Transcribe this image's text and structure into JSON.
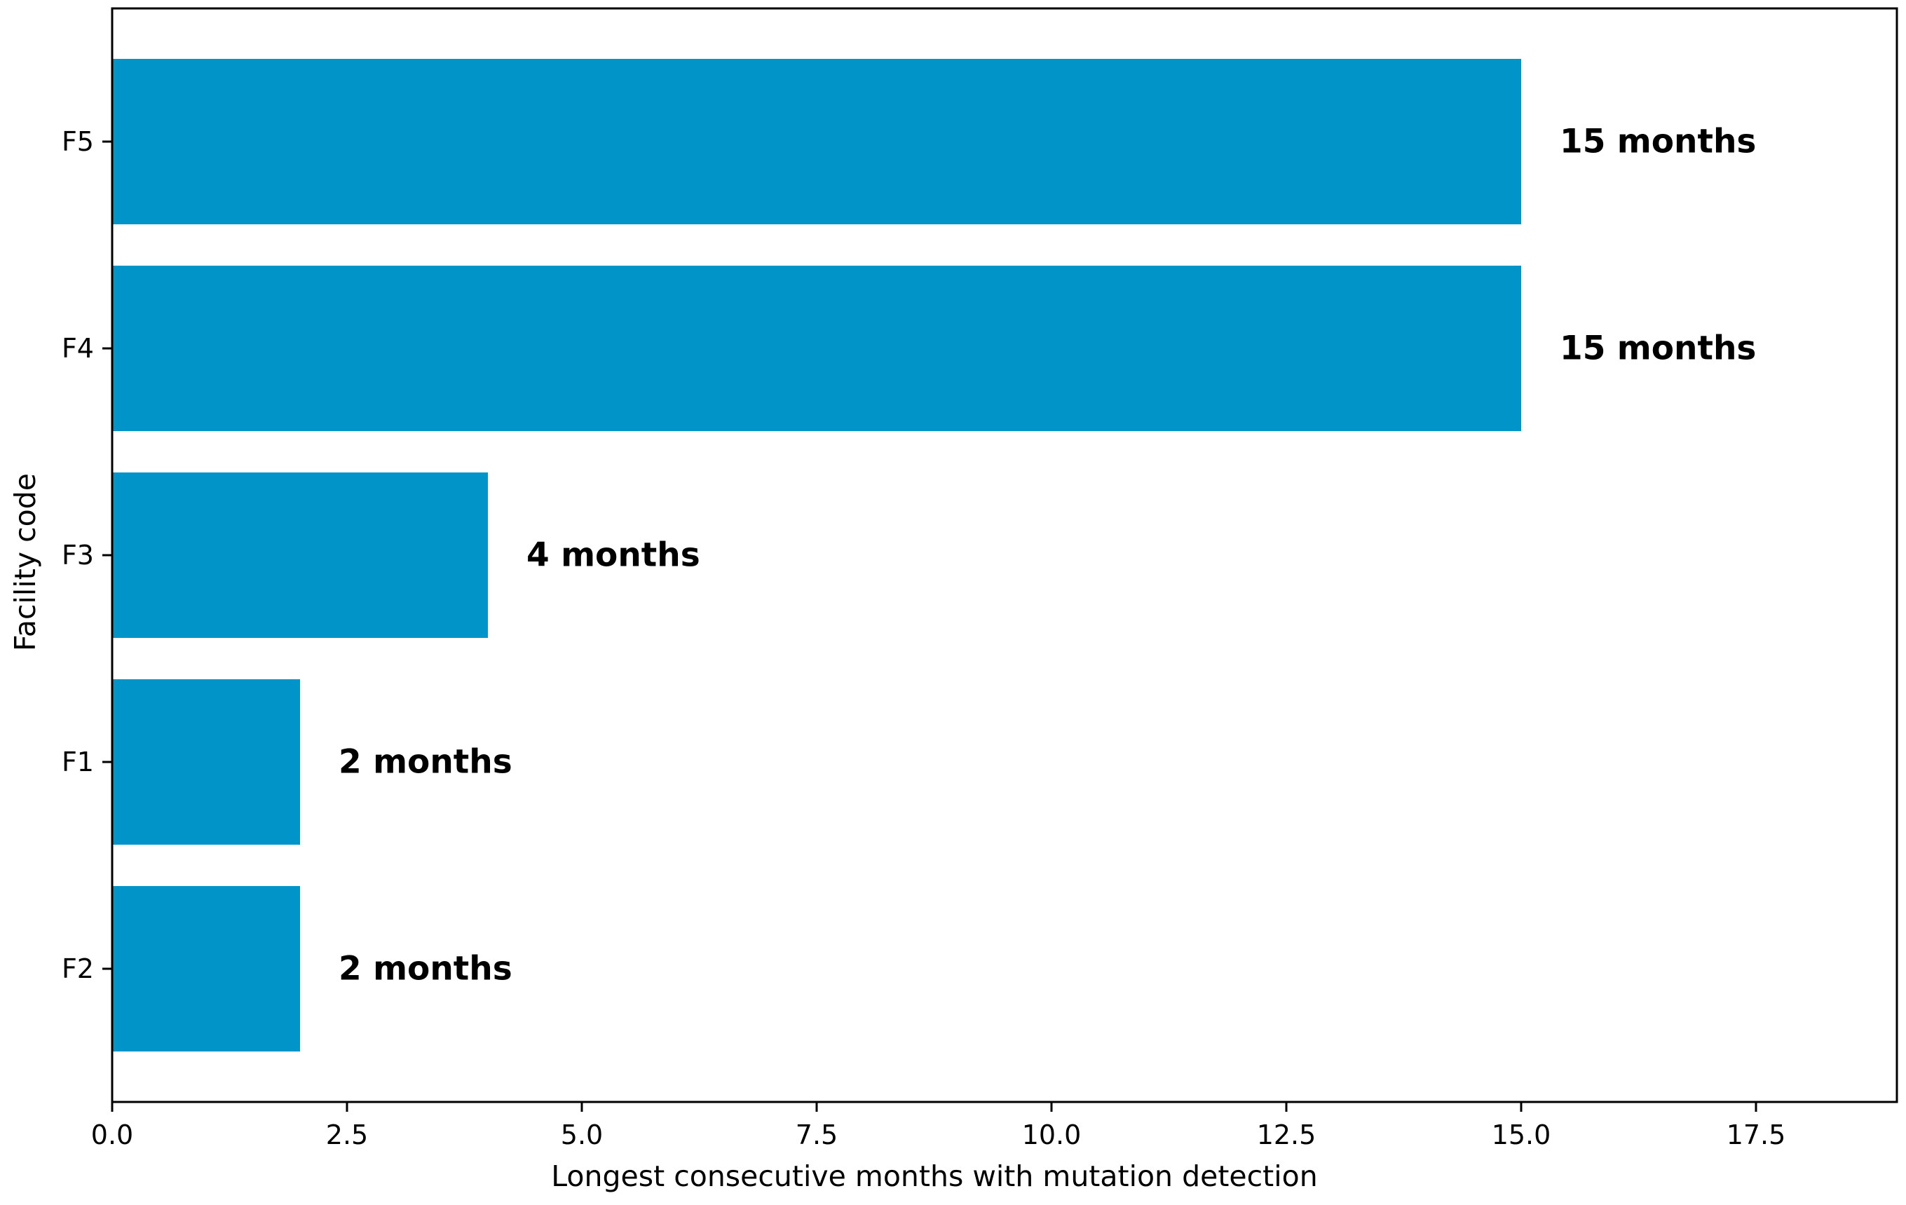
{
  "chart_data": {
    "type": "bar",
    "orientation": "horizontal",
    "categories": [
      "F2",
      "F1",
      "F3",
      "F4",
      "F5"
    ],
    "values": [
      2,
      2,
      4,
      15,
      15
    ],
    "data_labels": [
      "2 months",
      "2 months",
      "4 months",
      "15 months",
      "15 months"
    ],
    "xlabel": "Longest consecutive months with mutation detection",
    "ylabel": "Facility code",
    "xlim": [
      0,
      19
    ],
    "xticks": [
      0.0,
      2.5,
      5.0,
      7.5,
      10.0,
      12.5,
      15.0,
      17.5
    ],
    "xtick_labels": [
      "0.0",
      "2.5",
      "5.0",
      "7.5",
      "10.0",
      "12.5",
      "15.0",
      "17.5"
    ],
    "bar_color": "#0094c8",
    "grid": false,
    "legend": "none"
  }
}
